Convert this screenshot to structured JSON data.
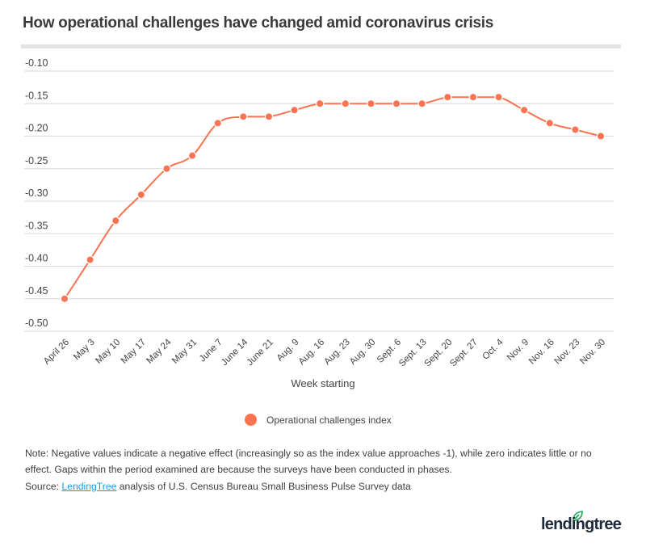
{
  "title": "How operational challenges have changed amid coronavirus crisis",
  "colors": {
    "series": "#fb7350",
    "grid": "#d9d9d9",
    "title_rule": "#e3e3e3",
    "link": "#1a9bd7",
    "logo_text": "#1c2a3a",
    "logo_leaf": "#1fa65a"
  },
  "chart_data": {
    "type": "line",
    "title": "How operational challenges have changed amid coronavirus crisis",
    "xlabel": "Week starting",
    "ylabel": "",
    "ylim": [
      -0.5,
      -0.1
    ],
    "yticks": [
      -0.1,
      -0.15,
      -0.2,
      -0.25,
      -0.3,
      -0.35,
      -0.4,
      -0.45,
      -0.5
    ],
    "ytick_labels": [
      "-0.10",
      "-0.15",
      "-0.20",
      "-0.25",
      "-0.30",
      "-0.35",
      "-0.40",
      "-0.45",
      "-0.50"
    ],
    "grid": true,
    "legend_position": "bottom-center",
    "categories": [
      "April 26",
      "May 3",
      "May 10",
      "May 17",
      "May 24",
      "May 31",
      "June 7",
      "June 14",
      "June 21",
      "Aug. 9",
      "Aug. 16",
      "Aug. 23",
      "Aug. 30",
      "Sept. 6",
      "Sept. 13",
      "Sept. 20",
      "Sept. 27",
      "Oct. 4",
      "Nov. 9",
      "Nov. 16",
      "Nov. 23",
      "Nov. 30"
    ],
    "series": [
      {
        "name": "Operational challenges index",
        "values": [
          -0.45,
          -0.39,
          -0.33,
          -0.29,
          -0.25,
          -0.23,
          -0.18,
          -0.17,
          -0.17,
          -0.16,
          -0.15,
          -0.15,
          -0.15,
          -0.15,
          -0.15,
          -0.14,
          -0.14,
          -0.14,
          -0.16,
          -0.18,
          -0.19,
          -0.2
        ]
      }
    ]
  },
  "legend": {
    "label": "Operational challenges index"
  },
  "note": "Note: Negative values indicate a negative effect (increasingly so as the index value approaches -1), while zero indicates little or no effect. Gaps within the period examined are because the surveys have been conducted in phases.",
  "source": {
    "prefix": "Source: ",
    "link_text": "LendingTree",
    "suffix": " analysis of U.S. Census Bureau Small Business Pulse Survey data"
  },
  "logo": {
    "text": "lendingtree",
    "reg": "®"
  }
}
